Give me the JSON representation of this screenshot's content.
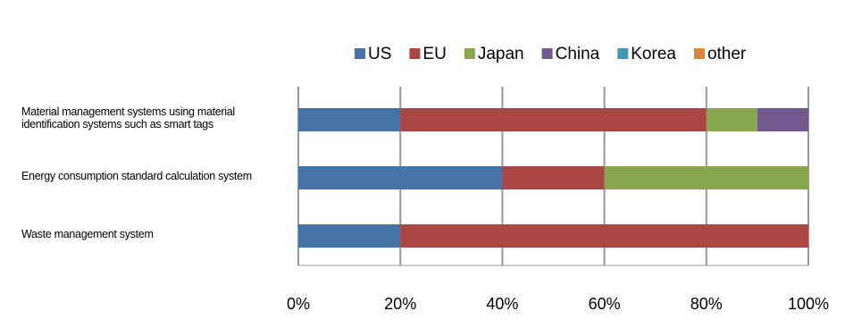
{
  "chart_data": {
    "type": "stacked-bar-horizontal",
    "categories": [
      "Material management systems using material identification systems such as smart tags",
      "Energy consumption standard calculation system",
      "Waste management system"
    ],
    "series": [
      {
        "name": "US",
        "color": "#4572a7",
        "values": [
          20,
          40,
          20
        ]
      },
      {
        "name": "EU",
        "color": "#aa4643",
        "values": [
          60,
          20,
          80
        ]
      },
      {
        "name": "Japan",
        "color": "#89a54e",
        "values": [
          10,
          40,
          0
        ]
      },
      {
        "name": "China",
        "color": "#71588f",
        "values": [
          10,
          0,
          0
        ]
      },
      {
        "name": "Korea",
        "color": "#4198af",
        "values": [
          0,
          0,
          0
        ]
      },
      {
        "name": "other",
        "color": "#db843d",
        "values": [
          0,
          0,
          0
        ]
      }
    ],
    "xlim": [
      0,
      100
    ],
    "xticks": [
      {
        "value": 0,
        "label": "0%"
      },
      {
        "value": 20,
        "label": "20%"
      },
      {
        "value": 40,
        "label": "40%"
      },
      {
        "value": 60,
        "label": "60%"
      },
      {
        "value": 80,
        "label": "80%"
      },
      {
        "value": 100,
        "label": "100%"
      }
    ],
    "grid": true
  }
}
